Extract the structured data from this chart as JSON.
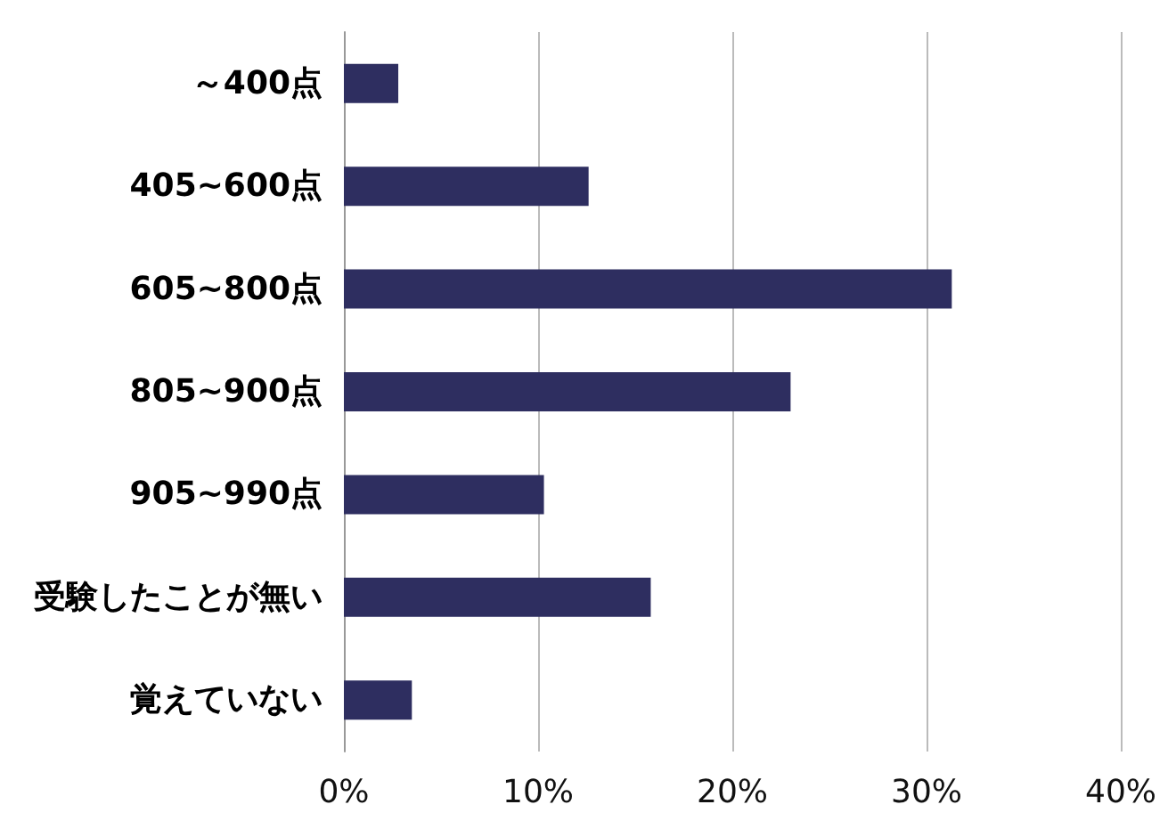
{
  "chart_data": {
    "type": "bar",
    "orientation": "horizontal",
    "categories": [
      "～400点",
      "405~600点",
      "605~800点",
      "805~900点",
      "905~990点",
      "受験したことが無い",
      "覚えていない"
    ],
    "values": [
      2.8,
      12.6,
      31.3,
      23.0,
      10.3,
      15.8,
      3.5
    ],
    "color": "#2e2e60",
    "xlim": [
      0,
      40
    ],
    "xticks": [
      {
        "value": 0,
        "label": "0%"
      },
      {
        "value": 10,
        "label": "10%"
      },
      {
        "value": 20,
        "label": "20%"
      },
      {
        "value": 30,
        "label": "30%"
      },
      {
        "value": 40,
        "label": "40%"
      }
    ],
    "grid": "x"
  }
}
